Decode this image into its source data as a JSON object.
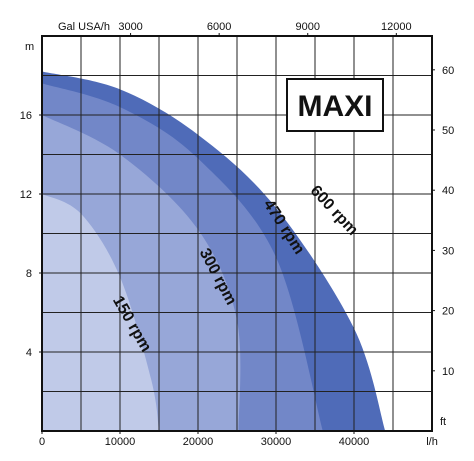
{
  "chart_data": {
    "type": "area",
    "title": "MAXI",
    "x": {
      "unit": "l/h",
      "range": [
        0,
        50000
      ],
      "ticks": [
        0,
        10000,
        20000,
        30000,
        40000
      ]
    },
    "x_top": {
      "unit": "Gal USA/h",
      "ticks": [
        3000,
        6000,
        9000,
        12000
      ]
    },
    "y": {
      "unit": "m",
      "range": [
        0,
        20
      ],
      "ticks": [
        4,
        8,
        12,
        16
      ]
    },
    "y_right": {
      "unit": "ft",
      "ticks": [
        10,
        20,
        30,
        40,
        50,
        60
      ]
    },
    "grid": true,
    "series": [
      {
        "name": "600 rpm",
        "color": "#4f6bb8",
        "points": [
          [
            0,
            18.2
          ],
          [
            10000,
            17.3
          ],
          [
            20000,
            15.0
          ],
          [
            30000,
            11.3
          ],
          [
            40000,
            5.2
          ],
          [
            44000,
            0
          ]
        ]
      },
      {
        "name": "470 rpm",
        "color": "#7287c8",
        "points": [
          [
            0,
            17.6
          ],
          [
            10000,
            16.4
          ],
          [
            20000,
            13.8
          ],
          [
            30000,
            8.8
          ],
          [
            36000,
            0
          ]
        ]
      },
      {
        "name": "300 rpm",
        "color": "#97a7d8",
        "points": [
          [
            0,
            16.0
          ],
          [
            10000,
            14.0
          ],
          [
            20000,
            10.2
          ],
          [
            25000,
            5.6
          ],
          [
            25200,
            0
          ]
        ]
      },
      {
        "name": "150 rpm",
        "color": "#c0cae8",
        "points": [
          [
            0,
            12.0
          ],
          [
            5000,
            11.0
          ],
          [
            10000,
            7.8
          ],
          [
            14000,
            2.6
          ],
          [
            15000,
            0
          ]
        ]
      }
    ],
    "labels": [
      {
        "text": "600 rpm",
        "x": 37000,
        "y": 11.0,
        "angle": 47
      },
      {
        "text": "470 rpm",
        "x": 30500,
        "y": 10.2,
        "angle": 57
      },
      {
        "text": "300 rpm",
        "x": 22000,
        "y": 7.7,
        "angle": 62
      },
      {
        "text": "150 rpm",
        "x": 11000,
        "y": 5.3,
        "angle": 60
      }
    ]
  }
}
